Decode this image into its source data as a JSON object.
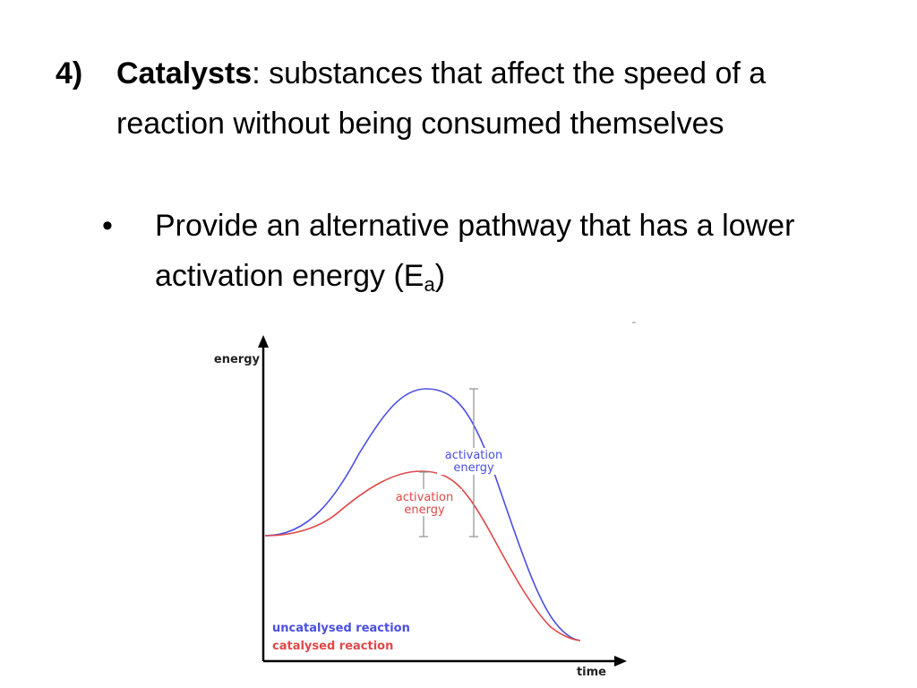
{
  "slide": {
    "number": "4)",
    "term": "Catalysts",
    "definition": ": substances that affect the speed of a reaction without being consumed themselves",
    "bullet_symbol": "•",
    "bullet_text_before_sub": "Provide an alternative pathway that has a lower activation energy (E",
    "bullet_subscript": "a",
    "bullet_text_after_sub": ")"
  },
  "diagram": {
    "y_axis_label": "energy",
    "x_axis_label": "time",
    "uncatalysed_annotation_line1": "activation",
    "uncatalysed_annotation_line2": "energy",
    "catalysed_annotation_line1": "activation",
    "catalysed_annotation_line2": "energy",
    "legend_uncatalysed": "uncatalysed reaction",
    "legend_catalysed": "catalysed reaction",
    "colors": {
      "uncatalysed": "#4a4fe0",
      "catalysed": "#e04848",
      "axis": "#000000",
      "bracket": "#909090"
    }
  }
}
